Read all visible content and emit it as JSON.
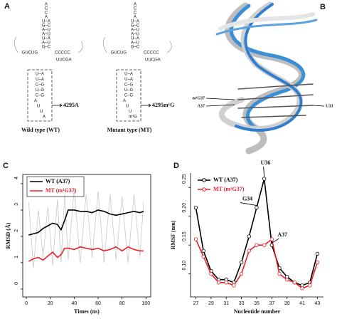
{
  "panel_a": {
    "label": "A",
    "structures": [
      {
        "acceptor": [
          "A",
          "C",
          "C",
          "A",
          "U–A",
          "G–C",
          "A–U",
          "A–U",
          "U–A",
          "A–U",
          "G–C"
        ],
        "d_arm": "GUCUG",
        "t_arm": "CCCCC",
        "t_loop": "UUCGA",
        "anticodon": [
          "U–A",
          "U–A",
          "C–G",
          "U–G",
          "C–G",
          "A",
          "U",
          "U",
          "A"
        ],
        "caption": "Wild type (WT)",
        "site": "4295A"
      },
      {
        "acceptor": [
          "A",
          "C",
          "C",
          "A",
          "U–A",
          "G–C",
          "A–U",
          "A–U",
          "U–A",
          "A–U",
          "G–C"
        ],
        "d_arm": "GUCUG",
        "t_arm": "CCCCC",
        "t_loop": "UUCGA",
        "anticodon": [
          "U–A",
          "U–A",
          "C–G",
          "U–G",
          "C–G",
          "A",
          "U",
          "U",
          "m¹G"
        ],
        "caption": "Mutant type (MT)",
        "site": "4295m¹G"
      }
    ]
  },
  "panel_b": {
    "label": "B",
    "labels": [
      "m¹G37",
      "A37",
      "U33"
    ]
  },
  "chart_data": [
    {
      "type": "line",
      "panel_label": "C",
      "x_label": "Times (ns)",
      "y_label": "RMSD (Å)",
      "frame": true,
      "x": [
        2,
        6,
        10,
        14,
        18,
        22,
        26,
        29,
        32,
        35,
        40,
        45,
        50,
        55,
        60,
        65,
        70,
        75,
        80,
        85,
        90,
        95,
        98
      ],
      "series": [
        {
          "color": "#c8c8c8",
          "values": [
            3.3,
            0.8,
            3.0,
            1.2,
            3.1,
            0.9,
            3.4,
            1.0,
            3.6,
            1.1,
            3.8,
            1.0,
            3.6,
            1.2,
            3.7,
            1.0,
            3.6,
            1.1,
            3.5,
            1.0,
            3.6,
            1.2,
            3.3
          ]
        },
        {
          "name": "WT (A37)",
          "color": "#000000",
          "values": [
            2.05,
            2.1,
            2.15,
            2.3,
            2.4,
            2.5,
            2.45,
            2.25,
            2.6,
            3.0,
            3.0,
            2.95,
            2.95,
            2.9,
            3.0,
            2.95,
            2.85,
            2.8,
            2.85,
            2.9,
            2.95,
            2.9,
            2.95
          ]
        },
        {
          "name": "MT (m¹G37)",
          "color": "#e8202a",
          "values": [
            1.05,
            1.15,
            1.2,
            1.1,
            1.25,
            1.4,
            1.2,
            1.3,
            1.55,
            1.55,
            1.5,
            1.6,
            1.55,
            1.5,
            1.55,
            1.45,
            1.5,
            1.6,
            1.45,
            1.6,
            1.5,
            1.45,
            1.45
          ]
        }
      ],
      "xlim": [
        -3,
        104
      ],
      "ylim": [
        -0.3,
        4.35
      ],
      "xticks": [
        0,
        20,
        40,
        60,
        80,
        100
      ],
      "yticks": [
        0,
        1,
        2,
        3,
        4
      ]
    },
    {
      "type": "line",
      "panel_label": "D",
      "x_label": "Nucleotide number",
      "y_label": "RMSF (nm)",
      "frame": false,
      "marker": "circle",
      "x": [
        27,
        28,
        29,
        30,
        31,
        32,
        33,
        34,
        35,
        36,
        37,
        38,
        39,
        40,
        41,
        42,
        43
      ],
      "series": [
        {
          "name": "WT (A37)",
          "color": "#000000",
          "values": [
            0.215,
            0.14,
            0.105,
            0.09,
            0.09,
            0.085,
            0.12,
            0.165,
            0.215,
            0.265,
            0.15,
            0.11,
            0.095,
            0.085,
            0.08,
            0.085,
            0.135
          ]
        },
        {
          "name": "MT (m¹G37)",
          "color": "#e8202a",
          "values": [
            0.16,
            0.13,
            0.1,
            0.085,
            0.085,
            0.08,
            0.1,
            0.14,
            0.15,
            0.15,
            0.16,
            0.1,
            0.09,
            0.085,
            0.075,
            0.08,
            0.12
          ]
        }
      ],
      "annotations": [
        "U36",
        "G34",
        "A37"
      ],
      "xlim": [
        26.3,
        43.8
      ],
      "ylim": [
        0.06,
        0.275
      ],
      "xticks": [
        27,
        29,
        31,
        33,
        35,
        37,
        39,
        41,
        43
      ],
      "yticks": [
        {
          "value": 0.1,
          "label": "0.10"
        },
        {
          "value": 0.15,
          "label": "0.15"
        },
        {
          "value": 0.2,
          "label": "0.20"
        },
        {
          "value": 0.25,
          "label": "0.25"
        }
      ]
    }
  ]
}
